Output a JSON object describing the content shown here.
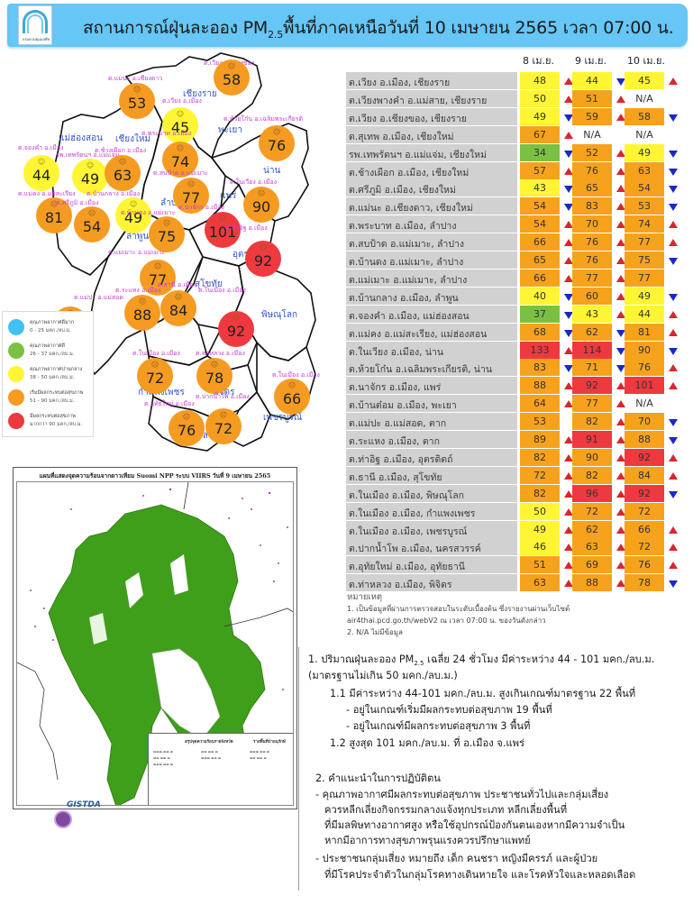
{
  "header": {
    "title_pre": "สถานการณ์ฝุ่นละออง PM",
    "title_sub": "2.5",
    "title_post": "พื้นที่ภาคเหนือวันที่ 10 เมษายน 2565 เวลา 07:00 น.",
    "logo_text": "กรมควบคุมมลพิษ"
  },
  "colors": {
    "header_bg": "#66c6f6",
    "very_good": "#3ec2f3",
    "good": "#7ac143",
    "moderate": "#fff535",
    "start_affect": "#f7a21c",
    "affect": "#ee3a3e",
    "arrow_up": "#d9262d",
    "arrow_down": "#1a28c8"
  },
  "map": {
    "provinces": [
      {
        "name": "เชียงราย"
      },
      {
        "name": "พะเยา"
      },
      {
        "name": "แม่ฮ่องสอน"
      },
      {
        "name": "เชียงใหม่"
      },
      {
        "name": "น่าน"
      },
      {
        "name": "ลำปาง"
      },
      {
        "name": "แพร่"
      },
      {
        "name": "ลำพูน"
      },
      {
        "name": "อุตรดิตถ์"
      },
      {
        "name": "สุโขทัย"
      },
      {
        "name": "ตาก"
      },
      {
        "name": "พิษณุโลก"
      },
      {
        "name": "กำแพงเพชร"
      },
      {
        "name": "พิจิตร"
      },
      {
        "name": "เพชรบูรณ์"
      },
      {
        "name": "นครสวรรค์"
      },
      {
        "name": "อุทัยธานี"
      }
    ],
    "stations": [
      {
        "label": "ต.เวียง อ.เชียงของ",
        "value": "58"
      },
      {
        "label": "ต.แม่นะ อ.เชียงดาว",
        "value": "53"
      },
      {
        "label": "ต.เวียง อ.เมือง",
        "value": "45"
      },
      {
        "label": "ต.ห้วยโก๋น อ.เฉลิมพระเกียรติ",
        "value": "76"
      },
      {
        "label": "ต.จองคำ อ.เมือง",
        "value": "44"
      },
      {
        "label": "รพ.เทพรัตนฯ อ.แม่แจ่ม",
        "value": "49"
      },
      {
        "label": "ต.ช้างเผือก อ.เมือง",
        "value": "63"
      },
      {
        "label": "ต.พระบาท อ.เมือง",
        "value": "74"
      },
      {
        "label": "ต.สบป้าด อ.แม่เมาะ",
        "value": "77"
      },
      {
        "label": "ต.ในเวียง อ.เมือง",
        "value": "90"
      },
      {
        "label": "ต.แม่คง อ.แม่สะเรียง",
        "value": "81"
      },
      {
        "label": "ต.ศรีภูมิ อ.เมือง",
        "value": "54"
      },
      {
        "label": "ต.บ้านกลาง อ.เมือง",
        "value": "49"
      },
      {
        "label": "ต.บ้านดง อ.แม่เมาะ",
        "value": "75"
      },
      {
        "label": "ต.นาจักร อ.เมือง",
        "value": "101"
      },
      {
        "label": "ต.ท่าอิฐ อ.เมือง",
        "value": "92"
      },
      {
        "label": "ต.แม่เมาะ อ.แม่เมาะ",
        "value": "77"
      },
      {
        "label": "ต.ธานี อ.เมือง",
        "value": "84"
      },
      {
        "label": "ต.แม่ปะ อ.แม่สอด",
        "value": "70"
      },
      {
        "label": "ต.ระแหง อ.เมือง",
        "value": "88"
      },
      {
        "label": "ต.ในเมือง อ.เมือง",
        "value": "92"
      },
      {
        "label": "ต.ในเมือง อ.เมือง",
        "value": "72"
      },
      {
        "label": "ต.ท่าหลวง อ.เมือง",
        "value": "78"
      },
      {
        "label": "ต.ในเมือง อ.เมือง",
        "value": "66"
      },
      {
        "label": "ต.อุทัยใหม่ อ.เมือง",
        "value": "76"
      },
      {
        "label": "ต.ปากน้ำโพ อ.เมือง",
        "value": "72"
      }
    ],
    "legend": [
      {
        "title": "คุณภาพอากาศดีมาก",
        "range": "0 - 25 มคก./ลบ.ม."
      },
      {
        "title": "คุณภาพอากาศดี",
        "range": "26 - 37 มคก./ลบ.ม."
      },
      {
        "title": "คุณภาพอากาศปานกลาง",
        "range": "38 - 50 มคก./ลบ.ม."
      },
      {
        "title": "เริ่มมีผลกระทบต่อสุขภาพ",
        "range": "51 - 90 มคก./ลบ.ม."
      },
      {
        "title": "มีผลกระทบต่อสุขภาพ",
        "range": "มากกว่า 90 มคก./ลบ.ม."
      }
    ]
  },
  "satellite": {
    "title": "แผนที่แสดงจุดความร้อนจากดาวเทียม Suomi NPP ระบบ VIIRS วันที่ 9 เมษายน 2565",
    "gistda_label": "GISTDA",
    "inset_heading_1": "สรุปจุดความร้อนรายจังหวัด",
    "inset_heading_2": "รายพื้นที่ป่าอนุรักษ์"
  },
  "table": {
    "headers": [
      "8 เม.ย.",
      "9 เม.ย.",
      "10 เม.ย."
    ],
    "rows": [
      {
        "name": "ต.เวียง อ.เมือง, เชียงราย",
        "v": [
          [
            "48",
            "y",
            "up"
          ],
          [
            "44",
            "y",
            "down"
          ],
          [
            "45",
            "y",
            "up"
          ]
        ]
      },
      {
        "name": "ต.เวียงพางคำ อ.แม่สาย, เชียงราย",
        "v": [
          [
            "50",
            "y",
            "up"
          ],
          [
            "51",
            "o",
            "up"
          ],
          [
            "N/A",
            "n",
            ""
          ]
        ]
      },
      {
        "name": "ต.เวียง อ.เชียงของ, เชียงราย",
        "v": [
          [
            "49",
            "y",
            "down"
          ],
          [
            "59",
            "o",
            "up"
          ],
          [
            "58",
            "o",
            "down"
          ]
        ]
      },
      {
        "name": "ต.สุเทพ อ.เมือง, เชียงใหม่",
        "v": [
          [
            "67",
            "o",
            "up"
          ],
          [
            "N/A",
            "n",
            ""
          ],
          [
            "N/A",
            "n",
            ""
          ]
        ]
      },
      {
        "name": "รพ.เทพรัตนฯ อ.แม่แจ่ม, เชียงใหม่",
        "v": [
          [
            "34",
            "g",
            "down"
          ],
          [
            "52",
            "o",
            "up"
          ],
          [
            "49",
            "y",
            "down"
          ]
        ]
      },
      {
        "name": "ต.ช้างเผือก อ.เมือง, เชียงใหม่",
        "v": [
          [
            "57",
            "o",
            "up"
          ],
          [
            "76",
            "o",
            "up"
          ],
          [
            "63",
            "o",
            "down"
          ]
        ]
      },
      {
        "name": "ต.ศรีภูมิ อ.เมือง, เชียงใหม่",
        "v": [
          [
            "43",
            "y",
            "down"
          ],
          [
            "65",
            "o",
            "up"
          ],
          [
            "54",
            "o",
            "down"
          ]
        ]
      },
      {
        "name": "ต.แม่นะ อ.เชียงดาว, เชียงใหม่",
        "v": [
          [
            "54",
            "o",
            "down"
          ],
          [
            "83",
            "o",
            "up"
          ],
          [
            "53",
            "o",
            "down"
          ]
        ]
      },
      {
        "name": "ต.พระบาท อ.เมือง, ลำปาง",
        "v": [
          [
            "54",
            "o",
            "up"
          ],
          [
            "70",
            "o",
            "up"
          ],
          [
            "74",
            "o",
            "up"
          ]
        ]
      },
      {
        "name": "ต.สบป้าด อ.แม่เมาะ, ลำปาง",
        "v": [
          [
            "66",
            "o",
            "up"
          ],
          [
            "76",
            "o",
            "up"
          ],
          [
            "77",
            "o",
            "up"
          ]
        ]
      },
      {
        "name": "ต.บ้านดง อ.แม่เมาะ, ลำปาง",
        "v": [
          [
            "65",
            "o",
            "up"
          ],
          [
            "76",
            "o",
            "up"
          ],
          [
            "75",
            "o",
            "down"
          ]
        ]
      },
      {
        "name": "ต.แม่เมาะ อ.แม่เมาะ, ลำปาง",
        "v": [
          [
            "66",
            "o",
            "up"
          ],
          [
            "77",
            "o",
            "up"
          ],
          [
            "77",
            "o",
            ""
          ]
        ]
      },
      {
        "name": "ต.บ้านกลาง อ.เมือง, ลำพูน",
        "v": [
          [
            "40",
            "y",
            "down"
          ],
          [
            "60",
            "o",
            "up"
          ],
          [
            "49",
            "y",
            "down"
          ]
        ]
      },
      {
        "name": "ต.จองคำ อ.เมือง, แม่ฮ่องสอน",
        "v": [
          [
            "37",
            "g",
            "down"
          ],
          [
            "43",
            "y",
            "up"
          ],
          [
            "44",
            "y",
            "up"
          ]
        ]
      },
      {
        "name": "ต.แม่คง อ.แม่สะเรียง, แม่ฮ่องสอน",
        "v": [
          [
            "68",
            "o",
            "down"
          ],
          [
            "62",
            "o",
            "down"
          ],
          [
            "81",
            "o",
            "up"
          ]
        ]
      },
      {
        "name": "ต.ในเวียง อ.เมือง, น่าน",
        "v": [
          [
            "133",
            "r",
            "up"
          ],
          [
            "114",
            "r",
            "down"
          ],
          [
            "90",
            "o",
            "down"
          ]
        ]
      },
      {
        "name": "ต.ห้วยโก๋น อ.เฉลิมพระเกียรติ, น่าน",
        "v": [
          [
            "83",
            "o",
            "down"
          ],
          [
            "71",
            "o",
            "down"
          ],
          [
            "76",
            "o",
            "up"
          ]
        ]
      },
      {
        "name": "ต.นาจักร อ.เมือง, แพร่",
        "v": [
          [
            "88",
            "o",
            "up"
          ],
          [
            "92",
            "r",
            "up"
          ],
          [
            "101",
            "r",
            "up"
          ]
        ]
      },
      {
        "name": "ต.บ้านต๋อม อ.เมือง, พะเยา",
        "v": [
          [
            "64",
            "o",
            "up"
          ],
          [
            "77",
            "o",
            "up"
          ],
          [
            "N/A",
            "n",
            ""
          ]
        ]
      },
      {
        "name": "ต.แม่ปะ อ.แม่สอด, ตาก",
        "v": [
          [
            "53",
            "o",
            ""
          ],
          [
            "82",
            "o",
            "up"
          ],
          [
            "70",
            "o",
            "down"
          ]
        ]
      },
      {
        "name": "ต.ระแหง อ.เมือง, ตาก",
        "v": [
          [
            "89",
            "o",
            "up"
          ],
          [
            "91",
            "r",
            "up"
          ],
          [
            "88",
            "o",
            "down"
          ]
        ]
      },
      {
        "name": "ต.ท่าอิฐ อ.เมือง, อุตรดิตถ์",
        "v": [
          [
            "82",
            "o",
            "up"
          ],
          [
            "90",
            "o",
            "up"
          ],
          [
            "92",
            "r",
            "up"
          ]
        ]
      },
      {
        "name": "ต.ธานี อ.เมือง, สุโขทัย",
        "v": [
          [
            "72",
            "o",
            "up"
          ],
          [
            "82",
            "o",
            "up"
          ],
          [
            "84",
            "o",
            "up"
          ]
        ]
      },
      {
        "name": "ต.ในเมือง อ.เมือง, พิษณุโลก",
        "v": [
          [
            "82",
            "o",
            "up"
          ],
          [
            "96",
            "r",
            "up"
          ],
          [
            "92",
            "r",
            "down"
          ]
        ]
      },
      {
        "name": "ต.ในเมือง อ.เมือง, กำแพงเพชร",
        "v": [
          [
            "50",
            "y",
            "up"
          ],
          [
            "72",
            "o",
            "up"
          ],
          [
            "72",
            "o",
            ""
          ]
        ]
      },
      {
        "name": "ต.ในเมือง อ.เมือง, เพชรบูรณ์",
        "v": [
          [
            "49",
            "y",
            "up"
          ],
          [
            "62",
            "o",
            "up"
          ],
          [
            "66",
            "o",
            "up"
          ]
        ]
      },
      {
        "name": "ต.ปากน้ำโพ อ.เมือง, นครสวรรค์",
        "v": [
          [
            "46",
            "y",
            "up"
          ],
          [
            "63",
            "o",
            "up"
          ],
          [
            "72",
            "o",
            "up"
          ]
        ]
      },
      {
        "name": "ต.อุทัยใหม่ อ.เมือง, อุทัยธานี",
        "v": [
          [
            "51",
            "o",
            "up"
          ],
          [
            "69",
            "o",
            "up"
          ],
          [
            "76",
            "o",
            "up"
          ]
        ]
      },
      {
        "name": "ต.ท่าหลวง อ.เมือง, พิจิตร",
        "v": [
          [
            "63",
            "o",
            "up"
          ],
          [
            "88",
            "o",
            "up"
          ],
          [
            "78",
            "o",
            "down"
          ]
        ]
      }
    ]
  },
  "notes": {
    "title": "หมายเหตุ",
    "line1": "1. เป็นข้อมูลที่ผ่านการตรวจสอบในระดับเบื้องต้น ซึ่งรายงานผ่านเว็บไซต์",
    "line2": "air4thai.pcd.go.th/webV2 ณ เวลา 07:00 น. ของวันดังกล่าว",
    "line3": "2. N/A ไม่มีข้อมูล"
  },
  "summary": {
    "s1_pre": "1. ปริมาณฝุ่นละออง PM",
    "s1_sub": "2.5",
    "s1_post": " เฉลี่ย 24 ชั่วโมง มีค่าระหว่าง 44 - 101 มคก./ลบ.ม.",
    "s1_line2": "(มาตรฐานไม่เกิน 50 มคก./ลบ.ม.)",
    "s1_1": "1.1 มีค่าระหว่าง 44-101 มคก./ลบ.ม. สูงเกินเกณฑ์มาตรฐาน 22 พื้นที่",
    "s1_1a": "- อยู่ในเกณฑ์เริ่มมีผลกระทบต่อสุขภาพ 19 พื้นที่",
    "s1_1b": "- อยู่ในเกณฑ์มีผลกระทบต่อสุขภาพ 3 พื้นที่",
    "s1_2": "1.2 สูงสุด 101 มคก./ลบ.ม. ที่ อ.เมือง จ.แพร่",
    "s2": "2. คำแนะนำในการปฏิบัติตน",
    "s2_a1": "- คุณภาพอากาศมีผลกระทบต่อสุขภาพ ประชาชนทั่วไปและกลุ่มเสี่ยง",
    "s2_a2": "ควรหลีกเลี่ยงกิจกรรมกลางแจ้งทุกประเภท หลีกเลี่ยงพื้นที่",
    "s2_a3": "ที่มีมลพิษทางอากาศสูง หรือใช้อุปกรณ์ป้องกันตนเองหากมีความจำเป็น",
    "s2_a4": "หากมีอาการทางสุขภาพรุนแรงควรปรึกษาแพทย์",
    "s2_b1": "- ประชาชนกลุ่มเสี่ยง หมายถึง เด็ก คนชรา หญิงมีครรภ์ และผู้ป่วย",
    "s2_b2": "ที่มีโรคประจำตัวในกลุ่มโรคทางเดินหายใจ และโรคหัวใจและหลอดเลือด"
  }
}
